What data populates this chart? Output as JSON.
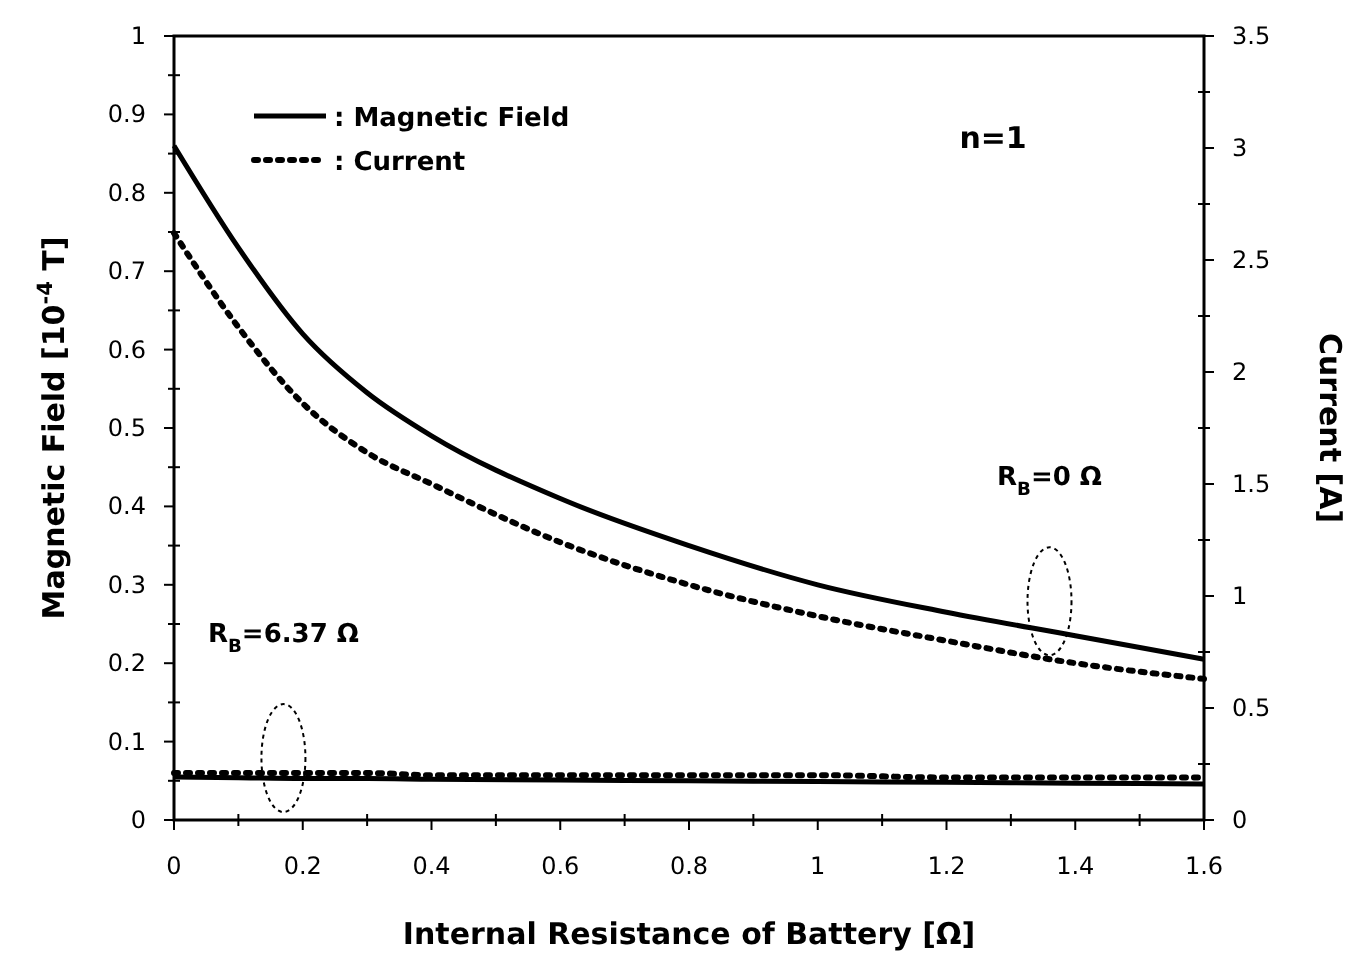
{
  "chart_data": {
    "type": "line",
    "xlabel": "Internal Resistance of Battery [Ω]",
    "ylabel": "Magnetic Field [10$^{-4}$ T]",
    "y2label": "Current [A]",
    "x": [
      0,
      0.1,
      0.2,
      0.3,
      0.4,
      0.6,
      0.8,
      1.0,
      1.2,
      1.4,
      1.6
    ],
    "series": [
      {
        "name": ": Magnetic Field",
        "color": "#000000",
        "line_style": "solid",
        "values": [
          0.86,
          0.73,
          0.62,
          0.545,
          0.49,
          0.41,
          0.35,
          0.3,
          0.265,
          0.235,
          0.205
        ]
      },
      {
        "name": ": Current",
        "color": "#000000",
        "line_style": "dotted",
        "axis": "y2",
        "values": [
          2.62,
          2.2,
          1.86,
          1.64,
          1.5,
          1.24,
          1.05,
          0.91,
          0.8,
          0.7,
          0.63
        ]
      },
      {
        "color": "#000000",
        "line_style": "solid",
        "values": [
          0.055,
          0.054,
          0.053,
          0.053,
          0.052,
          0.051,
          0.05,
          0.049,
          0.048,
          0.047,
          0.046
        ]
      },
      {
        "color": "#000000",
        "line_style": "dotted",
        "axis": "y2",
        "values": [
          0.21,
          0.21,
          0.21,
          0.21,
          0.2,
          0.2,
          0.2,
          0.2,
          0.19,
          0.19,
          0.19
        ]
      }
    ],
    "xlim": [
      0,
      1.6
    ],
    "xticks": [
      0,
      0.2,
      0.4,
      0.6,
      0.8,
      1,
      1.2,
      1.4,
      1.6
    ],
    "ylim": [
      0,
      1
    ],
    "yticks": [
      0,
      0.1,
      0.2,
      0.3,
      0.4,
      0.5,
      0.6,
      0.7,
      0.8,
      0.9,
      1
    ],
    "y2lim": [
      0,
      3.5
    ],
    "y2ticks": [
      0,
      0.5,
      1,
      1.5,
      2,
      2.5,
      3,
      3.5
    ],
    "legend": "top left",
    "grid": false,
    "annotations": [
      "n=1",
      "R$_{B}$=0 Ω",
      "R$_{B}$=6.37 Ω"
    ]
  }
}
